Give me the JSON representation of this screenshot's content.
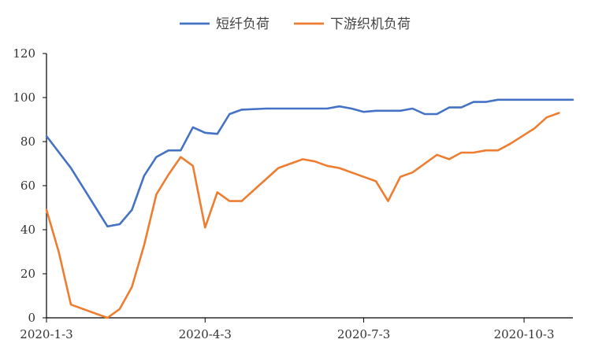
{
  "chart_data": {
    "type": "line",
    "title": "",
    "xlabel": "",
    "ylabel": "",
    "ylim": [
      0,
      120
    ],
    "yticks": [
      0,
      20,
      40,
      60,
      80,
      100,
      120
    ],
    "x_range": [
      "2020-01-03",
      "2020-10-31"
    ],
    "xtick_labels": [
      {
        "date": "2020-01-03",
        "label": "2020-1-3"
      },
      {
        "date": "2020-04-03",
        "label": "2020-4-3"
      },
      {
        "date": "2020-07-03",
        "label": "2020-7-3"
      },
      {
        "date": "2020-10-03",
        "label": "2020-10-3"
      }
    ],
    "grid": false,
    "legend_position": "top-center",
    "series": [
      {
        "name": "短纤负荷",
        "color": "#4472C4",
        "points": [
          [
            "2020-01-03",
            82.5
          ],
          [
            "2020-01-17",
            68
          ],
          [
            "2020-02-07",
            41.5
          ],
          [
            "2020-02-14",
            42.5
          ],
          [
            "2020-02-21",
            49
          ],
          [
            "2020-02-28",
            64.5
          ],
          [
            "2020-03-06",
            73
          ],
          [
            "2020-03-13",
            76
          ],
          [
            "2020-03-20",
            76
          ],
          [
            "2020-03-27",
            86.5
          ],
          [
            "2020-04-03",
            84
          ],
          [
            "2020-04-10",
            83.5
          ],
          [
            "2020-04-17",
            92.5
          ],
          [
            "2020-04-24",
            94.5
          ],
          [
            "2020-05-08",
            95
          ],
          [
            "2020-05-22",
            95
          ],
          [
            "2020-06-12",
            95
          ],
          [
            "2020-06-19",
            96
          ],
          [
            "2020-06-26",
            95
          ],
          [
            "2020-07-03",
            93.5
          ],
          [
            "2020-07-10",
            94
          ],
          [
            "2020-07-24",
            94
          ],
          [
            "2020-07-31",
            95
          ],
          [
            "2020-08-07",
            92.5
          ],
          [
            "2020-08-14",
            92.5
          ],
          [
            "2020-08-21",
            95.5
          ],
          [
            "2020-08-28",
            95.5
          ],
          [
            "2020-09-04",
            98
          ],
          [
            "2020-09-11",
            98
          ],
          [
            "2020-09-18",
            99
          ],
          [
            "2020-10-31",
            99
          ]
        ]
      },
      {
        "name": "下游织机负荷",
        "color": "#ED7D31",
        "points": [
          [
            "2020-01-03",
            49
          ],
          [
            "2020-01-10",
            30
          ],
          [
            "2020-01-17",
            6
          ],
          [
            "2020-02-07",
            0
          ],
          [
            "2020-02-14",
            4
          ],
          [
            "2020-02-21",
            14
          ],
          [
            "2020-02-28",
            33
          ],
          [
            "2020-03-06",
            56
          ],
          [
            "2020-03-13",
            65
          ],
          [
            "2020-03-20",
            73
          ],
          [
            "2020-03-27",
            69
          ],
          [
            "2020-04-03",
            41
          ],
          [
            "2020-04-10",
            57
          ],
          [
            "2020-04-17",
            53
          ],
          [
            "2020-04-24",
            53
          ],
          [
            "2020-05-08",
            63
          ],
          [
            "2020-05-15",
            68
          ],
          [
            "2020-05-22",
            70
          ],
          [
            "2020-05-29",
            72
          ],
          [
            "2020-06-05",
            71
          ],
          [
            "2020-06-12",
            69
          ],
          [
            "2020-06-19",
            68
          ],
          [
            "2020-07-03",
            64
          ],
          [
            "2020-07-10",
            62
          ],
          [
            "2020-07-17",
            53
          ],
          [
            "2020-07-24",
            64
          ],
          [
            "2020-07-31",
            66
          ],
          [
            "2020-08-07",
            70
          ],
          [
            "2020-08-14",
            74
          ],
          [
            "2020-08-21",
            72
          ],
          [
            "2020-08-28",
            75
          ],
          [
            "2020-09-04",
            75
          ],
          [
            "2020-09-11",
            76
          ],
          [
            "2020-09-18",
            76
          ],
          [
            "2020-09-25",
            79
          ],
          [
            "2020-10-09",
            86
          ],
          [
            "2020-10-16",
            91
          ],
          [
            "2020-10-23",
            93
          ]
        ]
      }
    ]
  }
}
